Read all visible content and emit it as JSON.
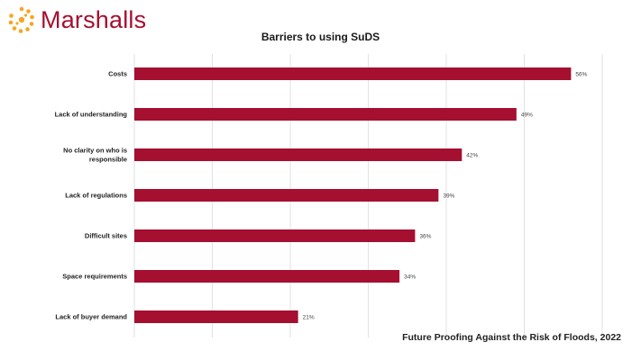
{
  "logo": {
    "text": "Marshalls",
    "icon": "sun-dots-icon",
    "color": "#a50f30",
    "dot_color": "#f5a623"
  },
  "chart_data": {
    "type": "bar",
    "orientation": "horizontal",
    "title": "Barriers to using SuDS",
    "categories": [
      "Costs",
      "Lack of understanding",
      "No clarity on who is responsible",
      "Lack of regulations",
      "Difficult sites",
      "Space requirements",
      "Lack of buyer demand"
    ],
    "category_lines": [
      [
        "Costs"
      ],
      [
        "Lack of understanding"
      ],
      [
        "No clarity on who is",
        "responsible"
      ],
      [
        "Lack of regulations"
      ],
      [
        "Difficult sites"
      ],
      [
        "Space requirements"
      ],
      [
        "Lack of buyer demand"
      ]
    ],
    "values": [
      56,
      49,
      42,
      39,
      36,
      34,
      21
    ],
    "value_labels": [
      "56%",
      "49%",
      "42%",
      "39%",
      "36%",
      "34%",
      "21%"
    ],
    "xlim": [
      0,
      60
    ],
    "grid": true,
    "bar_color": "#a50f30"
  },
  "source": "Future Proofing Against the Risk of Floods, 2022"
}
